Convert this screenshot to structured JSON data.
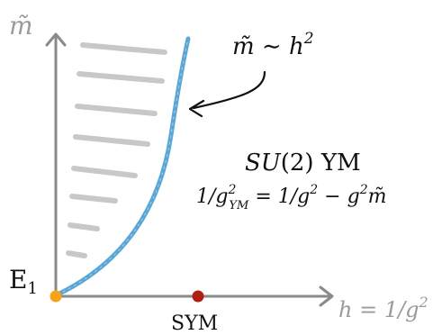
{
  "axes": {
    "y_label": "m̃",
    "x_label": "h = 1/g",
    "x_label_sup": "2"
  },
  "curve_annotation": {
    "text": "m̃ ∼ h",
    "sup": "2"
  },
  "theory": {
    "title_math": "SU",
    "title_rest": "(2) YM",
    "relation": "1/g",
    "relation_sup1": "2",
    "relation_sub1": "YM",
    "relation_mid": " = 1/g",
    "relation_sup2": "2",
    "relation_end": " − g",
    "relation_sup3": "2",
    "relation_tail": "m̃"
  },
  "points": {
    "origin_label": "E",
    "origin_label_sub": "1",
    "sym_label": "SYM"
  },
  "colors": {
    "axis": "#8a8a8a",
    "curve": "#5aa7d6",
    "hatch": "#c8c8c8",
    "origin_point": "#f7a21b",
    "sym_point": "#b01e12",
    "text": "#111111",
    "axis_label": "#9a9a9a"
  }
}
